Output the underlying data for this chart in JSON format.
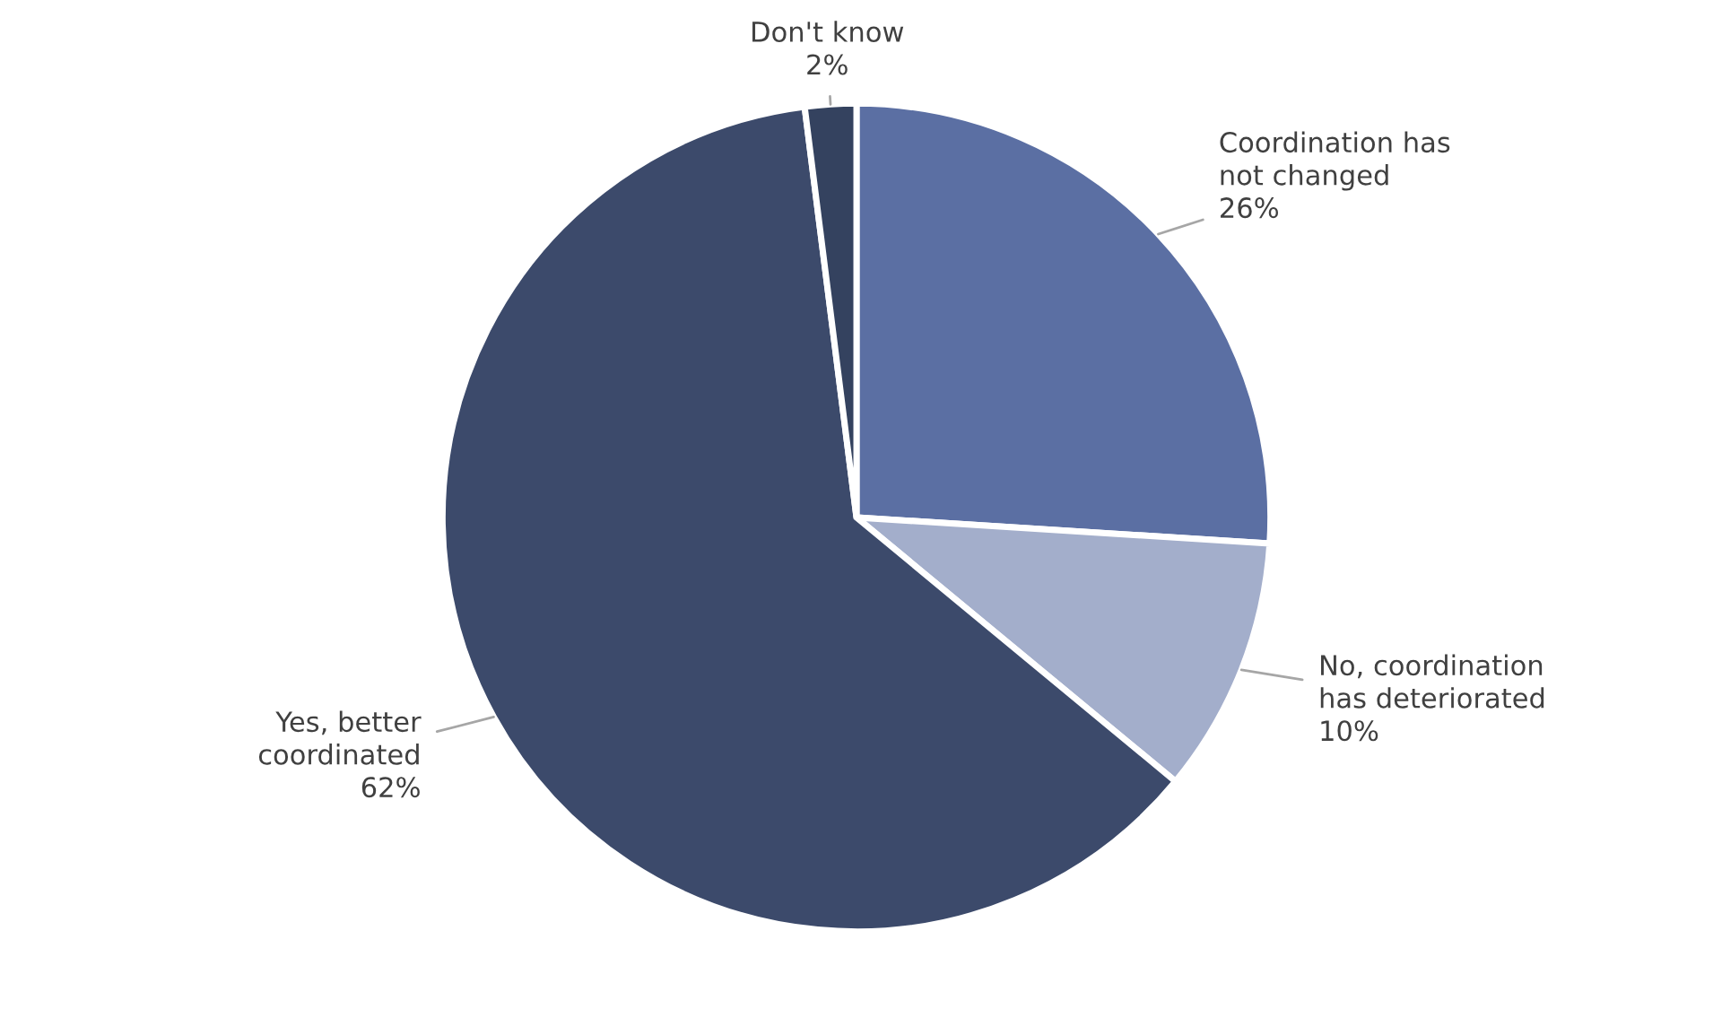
{
  "chart_data": {
    "type": "pie",
    "categories": [
      "Coordination has\nnot changed",
      "No, coordination\nhas deteriorated",
      "Yes, better\ncoordinated",
      "Don't know"
    ],
    "values": [
      26,
      10,
      62,
      2
    ],
    "colors": [
      "#5b6fa3",
      "#a3aecb",
      "#3c4a6b",
      "#34425f"
    ],
    "value_labels": [
      "26%",
      "10%",
      "62%",
      "2%"
    ]
  }
}
